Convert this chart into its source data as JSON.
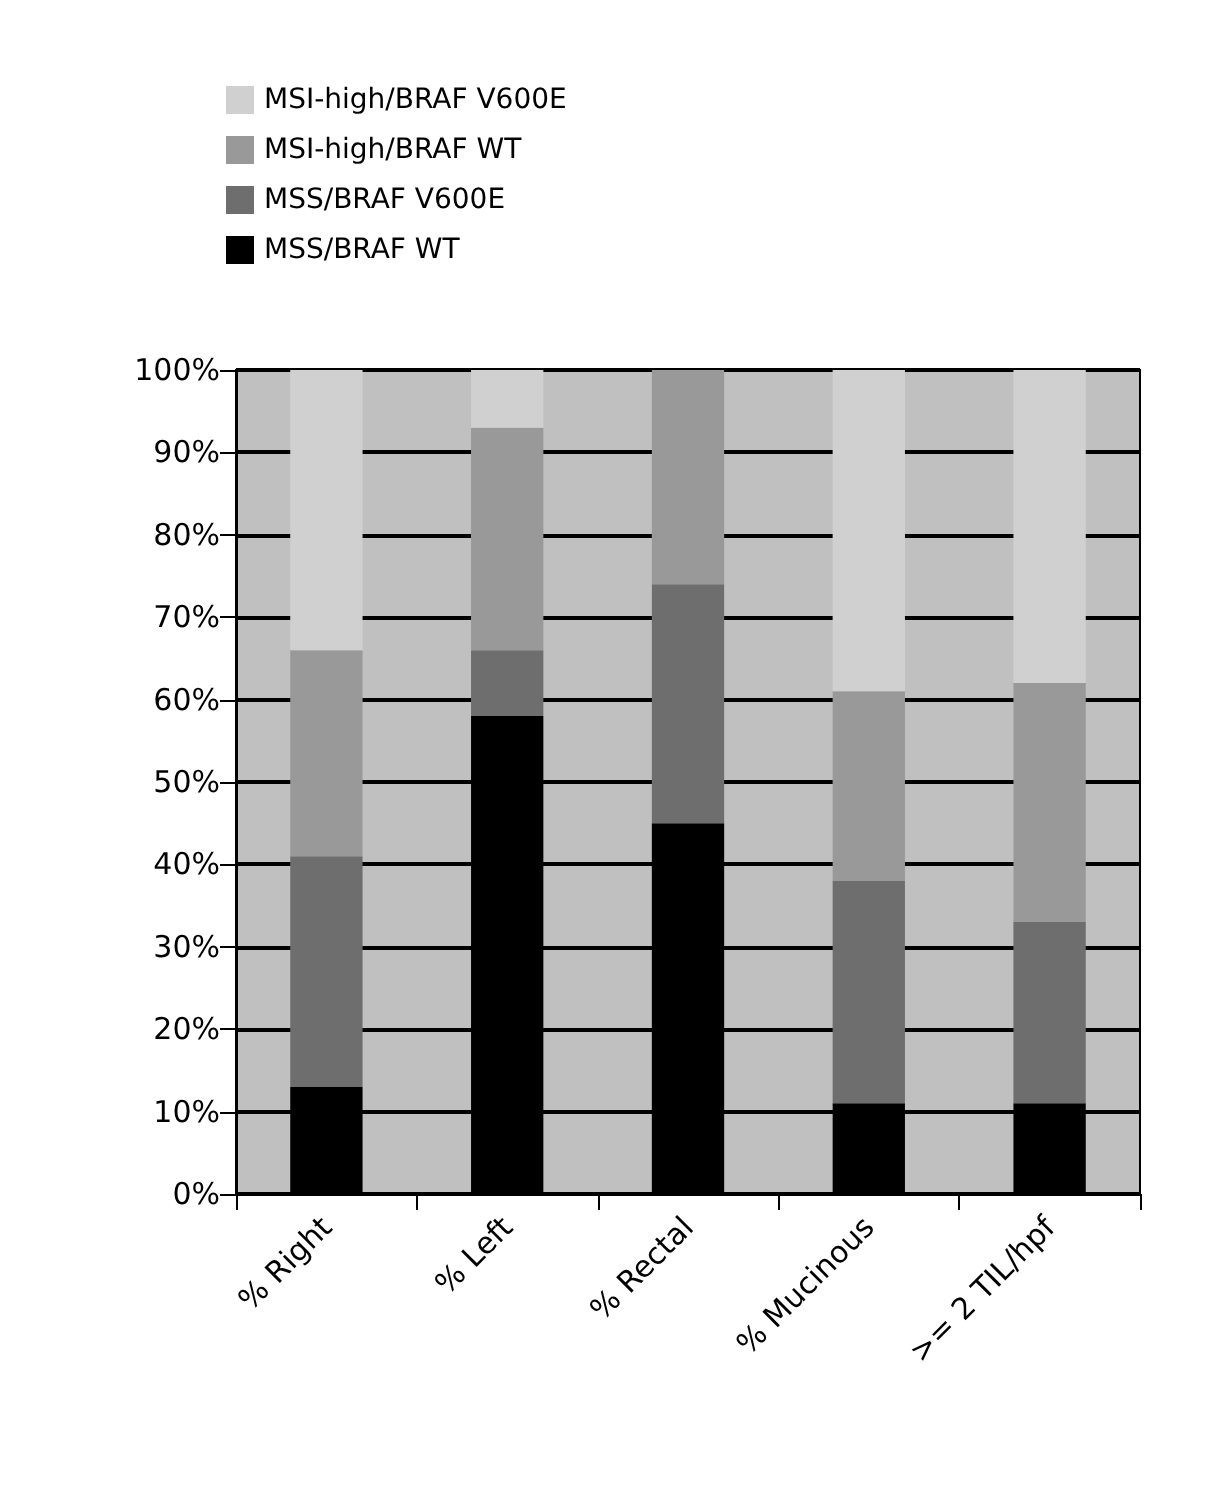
{
  "chart_data": {
    "type": "bar",
    "stacked": true,
    "categories": [
      "% Right",
      "% Left",
      "% Rectal",
      "% Mucinous",
      ">= 2 TIL/hpf"
    ],
    "series": [
      {
        "name": "MSS/BRAF WT",
        "color": "#000000",
        "values": [
          13,
          58,
          45,
          11,
          11
        ]
      },
      {
        "name": "MSS/BRAF V600E",
        "color": "#6e6e6e",
        "values": [
          28,
          8,
          29,
          27,
          22
        ]
      },
      {
        "name": "MSI-high/BRAF WT",
        "color": "#999999",
        "values": [
          25,
          27,
          26,
          23,
          29
        ]
      },
      {
        "name": "MSI-high/BRAF V600E",
        "color": "#d0d0d0",
        "values": [
          34,
          7,
          0,
          39,
          38
        ]
      }
    ],
    "ylim": [
      0,
      100
    ],
    "yticks": [
      {
        "value": 0,
        "label": "0%"
      },
      {
        "value": 10,
        "label": "10%"
      },
      {
        "value": 20,
        "label": "20%"
      },
      {
        "value": 30,
        "label": "30%"
      },
      {
        "value": 40,
        "label": "40%"
      },
      {
        "value": 50,
        "label": "50%"
      },
      {
        "value": 60,
        "label": "60%"
      },
      {
        "value": 70,
        "label": "70%"
      },
      {
        "value": 80,
        "label": "80%"
      },
      {
        "value": 90,
        "label": "90%"
      },
      {
        "value": 100,
        "label": "100%"
      }
    ],
    "grid": "y",
    "legend": "top left"
  }
}
